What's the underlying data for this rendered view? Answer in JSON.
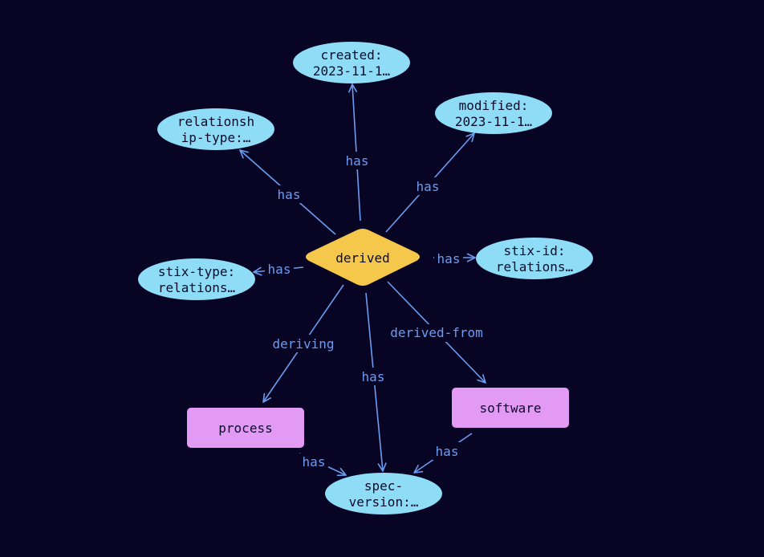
{
  "colors": {
    "background": "#080524",
    "edge": "#6b9cf0",
    "property_node": "#8fdcf6",
    "entity_node": "#e39af5",
    "relationship_node": "#f5c84c"
  },
  "nodes": {
    "derived": "derived",
    "created": [
      "created:",
      "2023-11-1…"
    ],
    "modified": [
      "modified:",
      "2023-11-1…"
    ],
    "relationship_type": [
      "relationsh",
      "ip-type:…"
    ],
    "stix_id": [
      "stix-id:",
      "relations…"
    ],
    "stix_type": [
      "stix-type:",
      "relations…"
    ],
    "process": "process",
    "software": "software",
    "spec_version": [
      "spec-",
      "version:…"
    ]
  },
  "edges": {
    "created": "has",
    "modified": "has",
    "relationship_type": "has",
    "stix_id": "has",
    "stix_type": "has",
    "deriving": "deriving",
    "derived_from": "derived-from",
    "spec_version": "has",
    "process_spec": "has",
    "software_spec": "has"
  }
}
